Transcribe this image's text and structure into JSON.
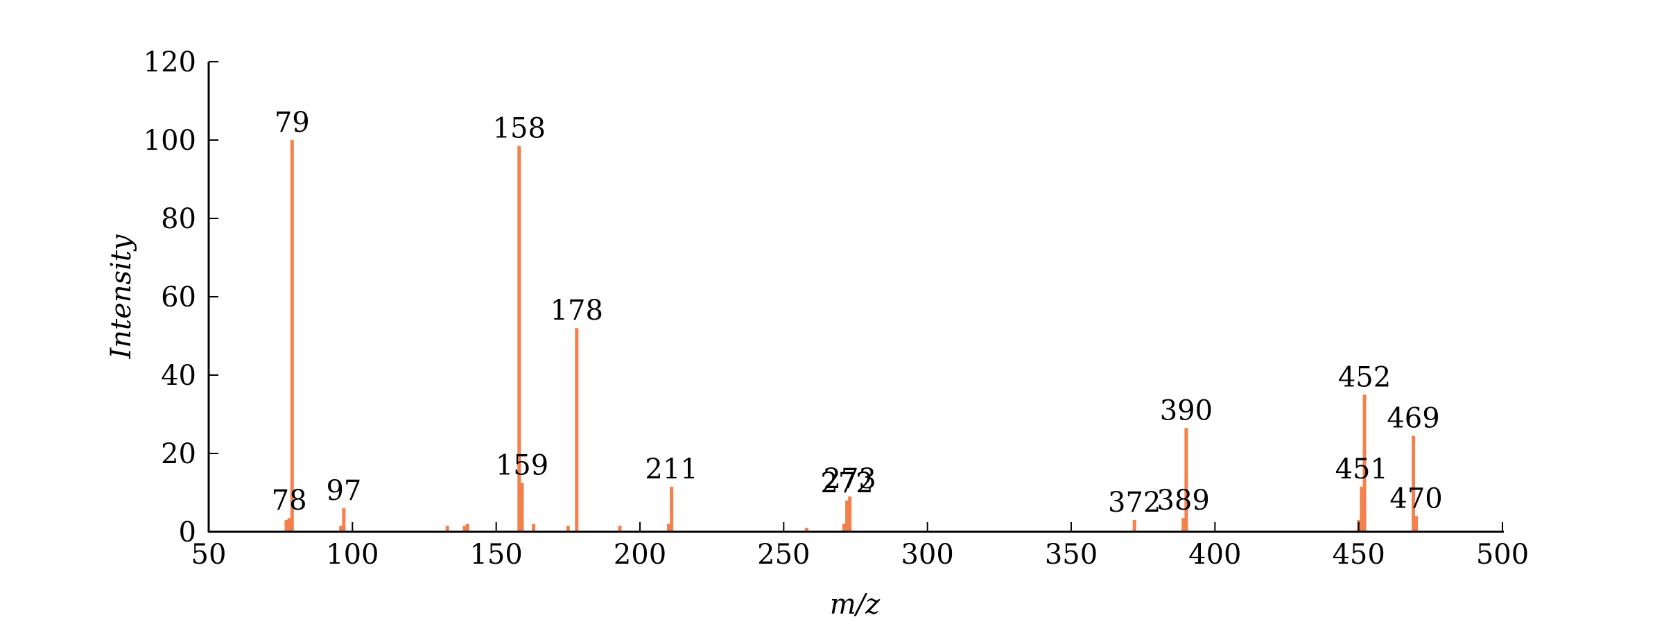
{
  "chart_data": {
    "type": "bar",
    "title": "",
    "xlabel": "m/z",
    "ylabel": "Intensity",
    "xlim": [
      50,
      500
    ],
    "ylim": [
      0,
      120
    ],
    "xticks": [
      50,
      100,
      150,
      200,
      250,
      300,
      350,
      400,
      450,
      500
    ],
    "yticks": [
      0,
      20,
      40,
      60,
      80,
      100,
      120
    ],
    "grid": false,
    "bar_color": "#f4804c",
    "axis_color": "#000000",
    "peaks": [
      {
        "x": 77,
        "y": 3
      },
      {
        "x": 78,
        "y": 3.5,
        "label": "78"
      },
      {
        "x": 79,
        "y": 100,
        "label": "79"
      },
      {
        "x": 96,
        "y": 1.5
      },
      {
        "x": 97,
        "y": 6,
        "label": "97"
      },
      {
        "x": 133,
        "y": 1.5
      },
      {
        "x": 139,
        "y": 1.5
      },
      {
        "x": 140,
        "y": 2
      },
      {
        "x": 158,
        "y": 98.5,
        "label": "158"
      },
      {
        "x": 159,
        "y": 12.5,
        "label": "159"
      },
      {
        "x": 163,
        "y": 2
      },
      {
        "x": 175,
        "y": 1.5
      },
      {
        "x": 178,
        "y": 52,
        "label": "178"
      },
      {
        "x": 193,
        "y": 1.5
      },
      {
        "x": 210,
        "y": 2
      },
      {
        "x": 211,
        "y": 11.5,
        "label": "211"
      },
      {
        "x": 258,
        "y": 1
      },
      {
        "x": 271,
        "y": 2
      },
      {
        "x": 272,
        "y": 8,
        "label": "272"
      },
      {
        "x": 273,
        "y": 9,
        "label": "273"
      },
      {
        "x": 372,
        "y": 3,
        "label": "372"
      },
      {
        "x": 389,
        "y": 3.5,
        "label": "389"
      },
      {
        "x": 390,
        "y": 26.5,
        "label": "390"
      },
      {
        "x": 450,
        "y": 3
      },
      {
        "x": 451,
        "y": 11.5,
        "label": "451"
      },
      {
        "x": 452,
        "y": 35,
        "label": "452"
      },
      {
        "x": 469,
        "y": 24.5,
        "label": "469"
      },
      {
        "x": 470,
        "y": 4,
        "label": "470"
      }
    ]
  }
}
